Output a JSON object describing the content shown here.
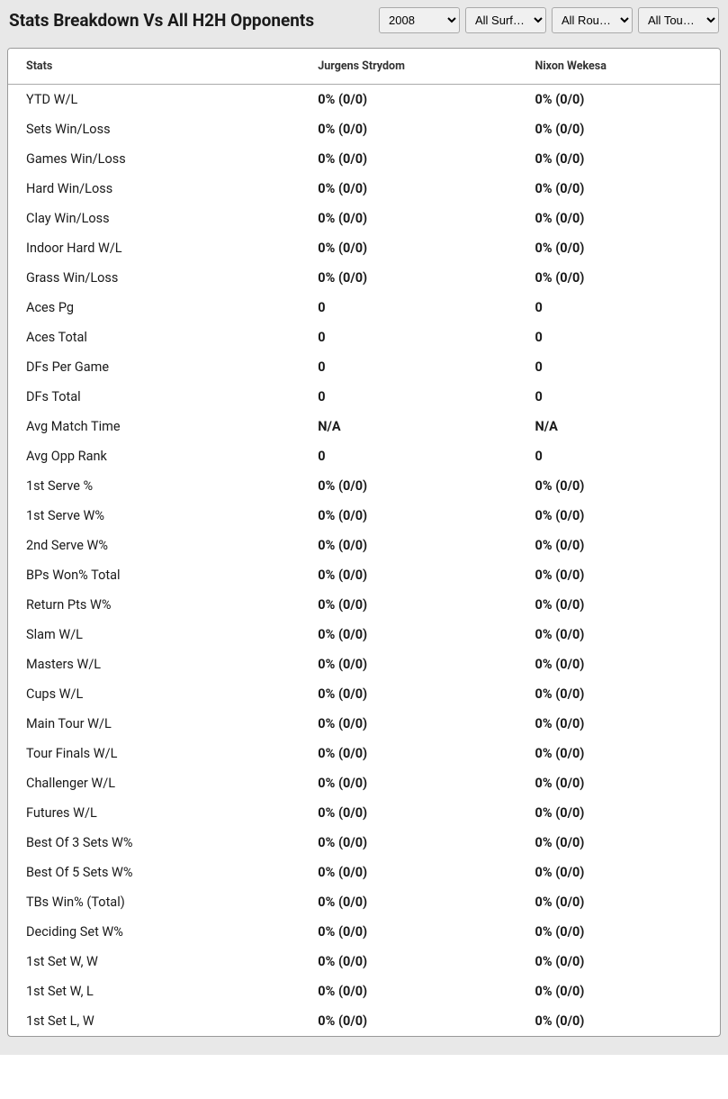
{
  "header": {
    "title": "Stats Breakdown Vs All H2H Opponents"
  },
  "filters": {
    "year": "2008",
    "surface": "All Surf…",
    "round": "All Rou…",
    "tournament": "All Tour…"
  },
  "table": {
    "columns": [
      "Stats",
      "Jurgens Strydom",
      "Nixon Wekesa"
    ],
    "rows": [
      {
        "label": "YTD W/L",
        "p1": "0% (0/0)",
        "p2": "0% (0/0)"
      },
      {
        "label": "Sets Win/Loss",
        "p1": "0% (0/0)",
        "p2": "0% (0/0)"
      },
      {
        "label": "Games Win/Loss",
        "p1": "0% (0/0)",
        "p2": "0% (0/0)"
      },
      {
        "label": "Hard Win/Loss",
        "p1": "0% (0/0)",
        "p2": "0% (0/0)"
      },
      {
        "label": "Clay Win/Loss",
        "p1": "0% (0/0)",
        "p2": "0% (0/0)"
      },
      {
        "label": "Indoor Hard W/L",
        "p1": "0% (0/0)",
        "p2": "0% (0/0)"
      },
      {
        "label": "Grass Win/Loss",
        "p1": "0% (0/0)",
        "p2": "0% (0/0)"
      },
      {
        "label": "Aces Pg",
        "p1": "0",
        "p2": "0"
      },
      {
        "label": "Aces Total",
        "p1": "0",
        "p2": "0"
      },
      {
        "label": "DFs Per Game",
        "p1": "0",
        "p2": "0"
      },
      {
        "label": "DFs Total",
        "p1": "0",
        "p2": "0"
      },
      {
        "label": "Avg Match Time",
        "p1": "N/A",
        "p2": "N/A"
      },
      {
        "label": "Avg Opp Rank",
        "p1": "0",
        "p2": "0"
      },
      {
        "label": "1st Serve %",
        "p1": "0% (0/0)",
        "p2": "0% (0/0)"
      },
      {
        "label": "1st Serve W%",
        "p1": "0% (0/0)",
        "p2": "0% (0/0)"
      },
      {
        "label": "2nd Serve W%",
        "p1": "0% (0/0)",
        "p2": "0% (0/0)"
      },
      {
        "label": "BPs Won% Total",
        "p1": "0% (0/0)",
        "p2": "0% (0/0)"
      },
      {
        "label": "Return Pts W%",
        "p1": "0% (0/0)",
        "p2": "0% (0/0)"
      },
      {
        "label": "Slam W/L",
        "p1": "0% (0/0)",
        "p2": "0% (0/0)"
      },
      {
        "label": "Masters W/L",
        "p1": "0% (0/0)",
        "p2": "0% (0/0)"
      },
      {
        "label": "Cups W/L",
        "p1": "0% (0/0)",
        "p2": "0% (0/0)"
      },
      {
        "label": "Main Tour W/L",
        "p1": "0% (0/0)",
        "p2": "0% (0/0)"
      },
      {
        "label": "Tour Finals W/L",
        "p1": "0% (0/0)",
        "p2": "0% (0/0)"
      },
      {
        "label": "Challenger W/L",
        "p1": "0% (0/0)",
        "p2": "0% (0/0)"
      },
      {
        "label": "Futures W/L",
        "p1": "0% (0/0)",
        "p2": "0% (0/0)"
      },
      {
        "label": "Best Of 3 Sets W%",
        "p1": "0% (0/0)",
        "p2": "0% (0/0)"
      },
      {
        "label": "Best Of 5 Sets W%",
        "p1": "0% (0/0)",
        "p2": "0% (0/0)"
      },
      {
        "label": "TBs Win% (Total)",
        "p1": "0% (0/0)",
        "p2": "0% (0/0)"
      },
      {
        "label": "Deciding Set W%",
        "p1": "0% (0/0)",
        "p2": "0% (0/0)"
      },
      {
        "label": "1st Set W, W",
        "p1": "0% (0/0)",
        "p2": "0% (0/0)"
      },
      {
        "label": "1st Set W, L",
        "p1": "0% (0/0)",
        "p2": "0% (0/0)"
      },
      {
        "label": "1st Set L, W",
        "p1": "0% (0/0)",
        "p2": "0% (0/0)"
      }
    ]
  }
}
